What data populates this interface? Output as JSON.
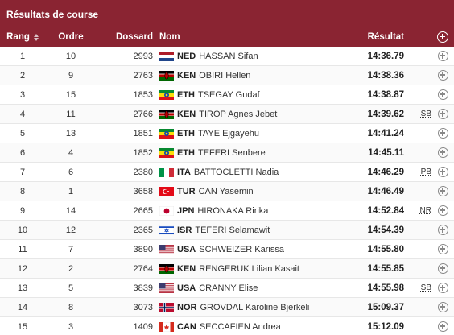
{
  "title": "Résultats de course",
  "headers": {
    "rank": "Rang",
    "order": "Ordre",
    "bib": "Dossard",
    "name": "Nom",
    "result": "Résultat"
  },
  "rows": [
    {
      "rank": "1",
      "order": "10",
      "bib": "2993",
      "noc": "NED",
      "athlete": "HASSAN Sifan",
      "flag": "ned",
      "result": "14:36.79",
      "record": ""
    },
    {
      "rank": "2",
      "order": "9",
      "bib": "2763",
      "noc": "KEN",
      "athlete": "OBIRI Hellen",
      "flag": "ken",
      "result": "14:38.36",
      "record": ""
    },
    {
      "rank": "3",
      "order": "15",
      "bib": "1853",
      "noc": "ETH",
      "athlete": "TSEGAY Gudaf",
      "flag": "eth",
      "result": "14:38.87",
      "record": ""
    },
    {
      "rank": "4",
      "order": "11",
      "bib": "2766",
      "noc": "KEN",
      "athlete": "TIROP Agnes Jebet",
      "flag": "ken",
      "result": "14:39.62",
      "record": "SB"
    },
    {
      "rank": "5",
      "order": "13",
      "bib": "1851",
      "noc": "ETH",
      "athlete": "TAYE Ejgayehu",
      "flag": "eth",
      "result": "14:41.24",
      "record": ""
    },
    {
      "rank": "6",
      "order": "4",
      "bib": "1852",
      "noc": "ETH",
      "athlete": "TEFERI Senbere",
      "flag": "eth",
      "result": "14:45.11",
      "record": ""
    },
    {
      "rank": "7",
      "order": "6",
      "bib": "2380",
      "noc": "ITA",
      "athlete": "BATTOCLETTI Nadia",
      "flag": "ita",
      "result": "14:46.29",
      "record": "PB"
    },
    {
      "rank": "8",
      "order": "1",
      "bib": "3658",
      "noc": "TUR",
      "athlete": "CAN Yasemin",
      "flag": "tur",
      "result": "14:46.49",
      "record": ""
    },
    {
      "rank": "9",
      "order": "14",
      "bib": "2665",
      "noc": "JPN",
      "athlete": "HIRONAKA Ririka",
      "flag": "jpn",
      "result": "14:52.84",
      "record": "NR"
    },
    {
      "rank": "10",
      "order": "12",
      "bib": "2365",
      "noc": "ISR",
      "athlete": "TEFERI Selamawit",
      "flag": "isr",
      "result": "14:54.39",
      "record": ""
    },
    {
      "rank": "11",
      "order": "7",
      "bib": "3890",
      "noc": "USA",
      "athlete": "SCHWEIZER Karissa",
      "flag": "usa",
      "result": "14:55.80",
      "record": ""
    },
    {
      "rank": "12",
      "order": "2",
      "bib": "2764",
      "noc": "KEN",
      "athlete": "RENGERUK Lilian Kasait",
      "flag": "ken",
      "result": "14:55.85",
      "record": ""
    },
    {
      "rank": "13",
      "order": "5",
      "bib": "3839",
      "noc": "USA",
      "athlete": "CRANNY Elise",
      "flag": "usa",
      "result": "14:55.98",
      "record": "SB"
    },
    {
      "rank": "14",
      "order": "8",
      "bib": "3073",
      "noc": "NOR",
      "athlete": "GROVDAL Karoline Bjerkeli",
      "flag": "nor",
      "result": "15:09.37",
      "record": ""
    },
    {
      "rank": "15",
      "order": "3",
      "bib": "1409",
      "noc": "CAN",
      "athlete": "SECCAFIEN Andrea",
      "flag": "can",
      "result": "15:12.09",
      "record": ""
    }
  ],
  "colors": {
    "header_bg": "#8a2432",
    "header_text": "#ffffff"
  },
  "icons": {
    "expand": "plus-circle-icon",
    "sort": "sort-arrows-icon"
  }
}
